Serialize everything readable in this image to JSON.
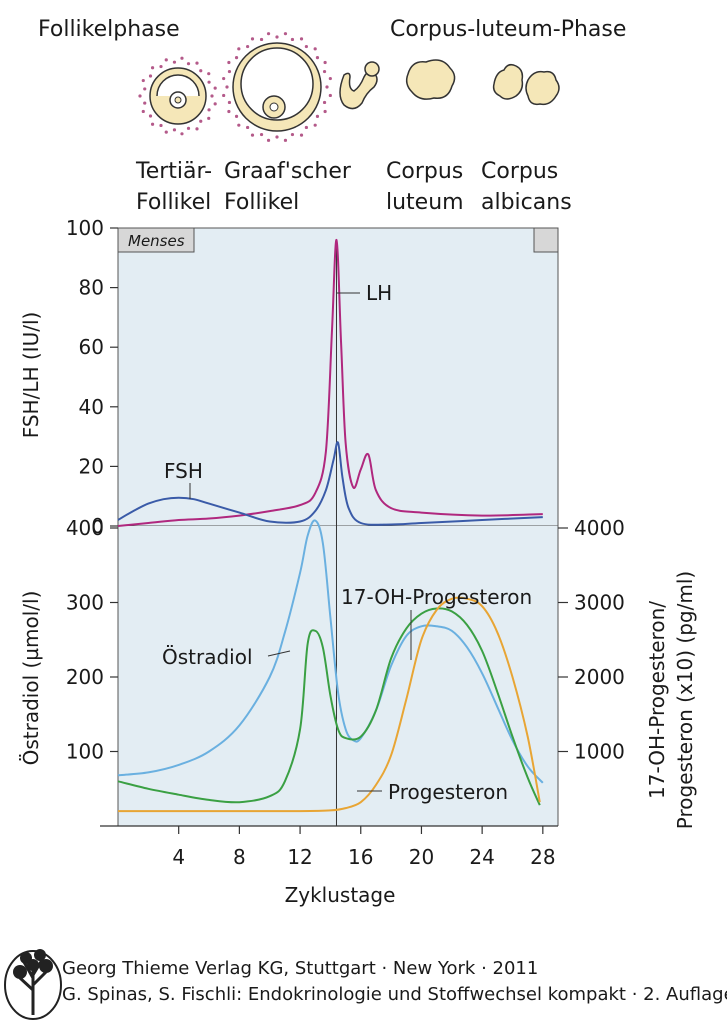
{
  "header": {
    "phase_left": "Follikelphase",
    "phase_right": "Corpus-luteum-Phase",
    "stage1_l1": "Tertiär-",
    "stage1_l2": "Follikel",
    "stage2_l1": "Graaf'scher",
    "stage2_l2": "Follikel",
    "stage3_l1": "Corpus",
    "stage3_l2": "luteum",
    "stage4_l1": "Corpus",
    "stage4_l2": "albicans"
  },
  "chart_data": [
    {
      "type": "line",
      "xlabel": "Zyklustage",
      "ylabel": "FSH/LH (IU/l)",
      "xlim": [
        0,
        29
      ],
      "ylim": [
        0,
        100
      ],
      "yticks": [
        0,
        20,
        40,
        60,
        80,
        100
      ],
      "band_label": "Menses",
      "series": [
        {
          "name": "LH",
          "color": "#b0287e",
          "x": [
            0,
            2,
            4,
            6,
            8,
            10,
            12,
            13,
            13.7,
            14.1,
            14.4,
            14.7,
            15,
            15.5,
            16,
            16.5,
            17,
            18,
            20,
            24,
            28
          ],
          "y": [
            0,
            1,
            2,
            2.5,
            3.5,
            5,
            7,
            11,
            25,
            65,
            96,
            62,
            28,
            13,
            19,
            24,
            12,
            6,
            4.5,
            3.5,
            4
          ]
        },
        {
          "name": "FSH",
          "color": "#3a5ba8",
          "x": [
            0,
            1,
            2,
            3,
            4,
            5,
            6,
            8,
            10,
            12,
            13,
            13.7,
            14.2,
            14.5,
            14.8,
            15.2,
            16,
            18,
            20,
            24,
            28
          ],
          "y": [
            2,
            5,
            7.5,
            9,
            9.5,
            9,
            7.5,
            4.5,
            1.5,
            1.5,
            5,
            12,
            22,
            28,
            16,
            6,
            1,
            0.5,
            1,
            2,
            3
          ]
        }
      ]
    },
    {
      "type": "line",
      "xlabel": "Zyklustage",
      "ylabel": "Östradiol (µmol/l)",
      "y2label": "17-OH-Progesteron/ Progesteron (x10) (pg/ml)",
      "xlim": [
        0,
        29
      ],
      "xticks": [
        4,
        8,
        12,
        16,
        20,
        24,
        28
      ],
      "ylim": [
        0,
        400
      ],
      "yticks": [
        100,
        200,
        300,
        400
      ],
      "y2lim": [
        0,
        4000
      ],
      "y2ticks": [
        1000,
        2000,
        3000,
        4000
      ],
      "series": [
        {
          "name": "Östradiol",
          "color": "#6ab0e0",
          "axis": "left",
          "x": [
            0,
            2,
            4,
            6,
            8,
            10,
            11,
            12,
            12.5,
            13,
            13.5,
            14,
            14.5,
            15,
            15.5,
            16,
            17,
            18,
            19,
            20,
            21,
            22,
            23,
            24,
            25,
            26,
            27,
            28
          ],
          "y": [
            68,
            72,
            82,
            100,
            135,
            200,
            260,
            340,
            390,
            410,
            380,
            280,
            180,
            130,
            115,
            118,
            155,
            215,
            255,
            268,
            268,
            262,
            240,
            205,
            160,
            115,
            80,
            58
          ]
        },
        {
          "name": "",
          "color": "#3aa043",
          "axis": "left",
          "x": [
            0,
            2,
            4,
            6,
            8,
            10,
            11,
            12,
            12.5,
            13,
            13.5,
            14,
            14.5,
            15,
            16,
            17,
            18,
            19,
            20,
            21,
            22,
            23,
            24,
            25,
            26,
            27,
            27.8
          ],
          "y": [
            60,
            50,
            42,
            35,
            32,
            40,
            60,
            130,
            245,
            262,
            240,
            175,
            130,
            118,
            120,
            155,
            225,
            265,
            285,
            292,
            288,
            270,
            235,
            180,
            120,
            65,
            28
          ]
        },
        {
          "name": "Progesteron",
          "color": "#e8a534",
          "axis": "right",
          "x": [
            0,
            4,
            8,
            12,
            14,
            15,
            16,
            17,
            18,
            19,
            20,
            21,
            22,
            23,
            24,
            25,
            26,
            27,
            27.8
          ],
          "y": [
            200,
            200,
            200,
            200,
            210,
            240,
            320,
            550,
            950,
            1700,
            2500,
            2900,
            3050,
            3050,
            2950,
            2600,
            2000,
            1200,
            320
          ]
        },
        {
          "name": "17-OH-Progesteron",
          "color": "#e8a534",
          "axis": "right",
          "x": [],
          "y": []
        }
      ]
    }
  ],
  "footer": {
    "line1": "Georg Thieme Verlag KG, Stuttgart · New York · 2011",
    "line2": "G. Spinas, S. Fischli: Endokrinologie und Stoffwechsel kompakt · 2. Auflage"
  }
}
